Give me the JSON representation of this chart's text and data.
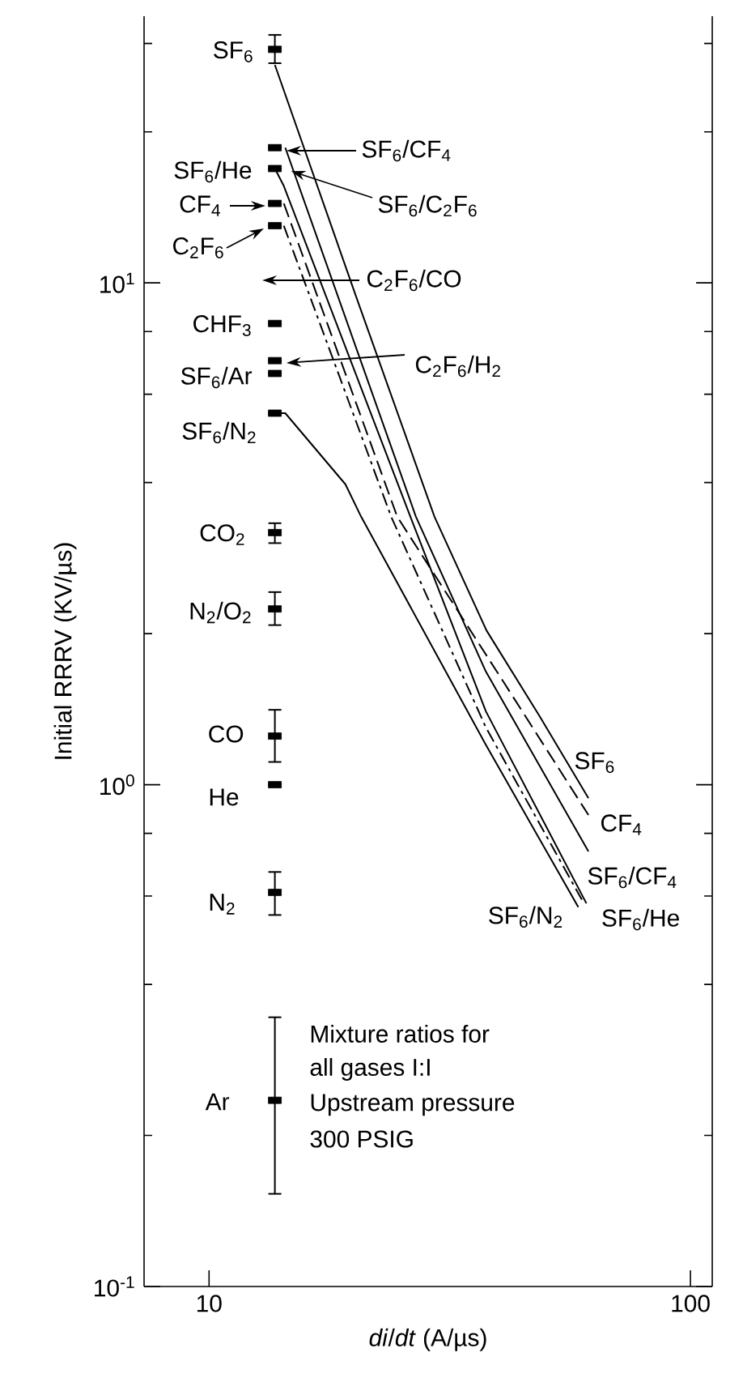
{
  "chart_data": {
    "type": "line",
    "xlabel": "*di*/*dt* (A/µs)",
    "ylabel": "Initial RRRV (KV/µs)",
    "log": "xy",
    "xlim": [
      7.33,
      111
    ],
    "ylim": [
      0.1,
      34
    ],
    "xticks": [
      10,
      100
    ],
    "yticks": [
      {
        "value": 0.1,
        "label": "10$^{-1}$"
      },
      {
        "value": 0.2,
        "label": null
      },
      {
        "value": 0.4,
        "label": null
      },
      {
        "value": 0.6,
        "label": null
      },
      {
        "value": 0.8,
        "label": null
      },
      {
        "value": 1,
        "label": "10$^{0}$"
      },
      {
        "value": 2,
        "label": null
      },
      {
        "value": 4,
        "label": null
      },
      {
        "value": 6,
        "label": null
      },
      {
        "value": 8,
        "label": null
      },
      {
        "value": 10,
        "label": "10$^{1}$"
      },
      {
        "value": 20,
        "label": null
      },
      {
        "value": 30,
        "label": null
      }
    ],
    "series": [
      {
        "name": "SF$_{6}$",
        "color": "#000000",
        "x": [
          13.7,
          20.2,
          29.4,
          37.7,
          48.6,
          61.4
        ],
        "values": [
          27.2,
          9.4,
          3.42,
          2.03,
          1.37,
          0.94
        ]
      },
      {
        "name": "CF$_{4}$",
        "color": "#000000",
        "line_style": "dashed",
        "x": [
          14.3,
          24.6,
          40.6,
          61.4
        ],
        "values": [
          14.4,
          3.42,
          1.62,
          0.87
        ]
      },
      {
        "name": "SF$_{6}$/CF$_{4}$",
        "color": "#000000",
        "x": [
          14.4,
          26.9,
          37.6,
          61.4
        ],
        "values": [
          18.6,
          3.42,
          1.68,
          0.736
        ]
      },
      {
        "name": "SF$_{6}$/He",
        "color": "#000000",
        "x": [
          13.7,
          14.3,
          26.2,
          37.6,
          60.8
        ],
        "values": [
          16.9,
          15.6,
          3.42,
          1.4,
          0.58
        ]
      },
      {
        "color": "#000000",
        "line_style": "dashdot",
        "x": [
          14.3,
          23.9,
          37.6,
          59.5
        ],
        "values": [
          13.0,
          3.42,
          1.3,
          0.59
        ]
      },
      {
        "name": "SF$_{6}$/N$_{2}$",
        "color": "#000000",
        "x": [
          13.7,
          14.4,
          19.2,
          20.7,
          37.6,
          58.5
        ],
        "values": [
          5.5,
          5.5,
          3.97,
          3.42,
          1.2,
          0.57
        ]
      },
      {
        "type": "scatter",
        "color": "#000000",
        "x": [
          13.7,
          13.7,
          13.7,
          13.7,
          13.7,
          13.7,
          13.7,
          13.7,
          13.7,
          13.7,
          13.7,
          13.7,
          13.7,
          13.7,
          13.7
        ],
        "values": [
          29.2,
          18.6,
          16.9,
          14.4,
          13.0,
          8.3,
          7.0,
          6.6,
          5.5,
          3.18,
          2.24,
          1.25,
          1.0,
          0.61,
          0.235
        ],
        "errors": [
          [
            27.4,
            31.2
          ],
          null,
          null,
          null,
          null,
          null,
          null,
          null,
          null,
          [
            3.03,
            3.32
          ],
          [
            2.08,
            2.42
          ],
          [
            1.11,
            1.41
          ],
          null,
          [
            0.55,
            0.67
          ],
          [
            0.153,
            0.344
          ]
        ]
      }
    ],
    "annotations": [
      "SF$_{6}$",
      "SF$_{6}$/CF$_{4}$",
      {
        "text": "SF$_{6}$/C$_{2}$F$_{6}$",
        "x": 14.8,
        "y": 16.7
      },
      "SF$_{6}$/He",
      "CF$_{4}$",
      "C$_{2}$F$_{6}$",
      "C$_{2}$F$_{6}$/CO",
      "CHF$_{3}$",
      "C$_{2}$F$_{6}$/H$_{2}$",
      "SF$_{6}$/Ar",
      "SF$_{6}$/N$_{2}$",
      "CO$_{2}$",
      "N$_{2}$/O$_{2}$",
      "CO",
      "He",
      "N$_{2}$",
      "Ar",
      "Mixture ratios for",
      "all gases I:I",
      "Upstream pressure",
      "300 PSIG"
    ]
  }
}
